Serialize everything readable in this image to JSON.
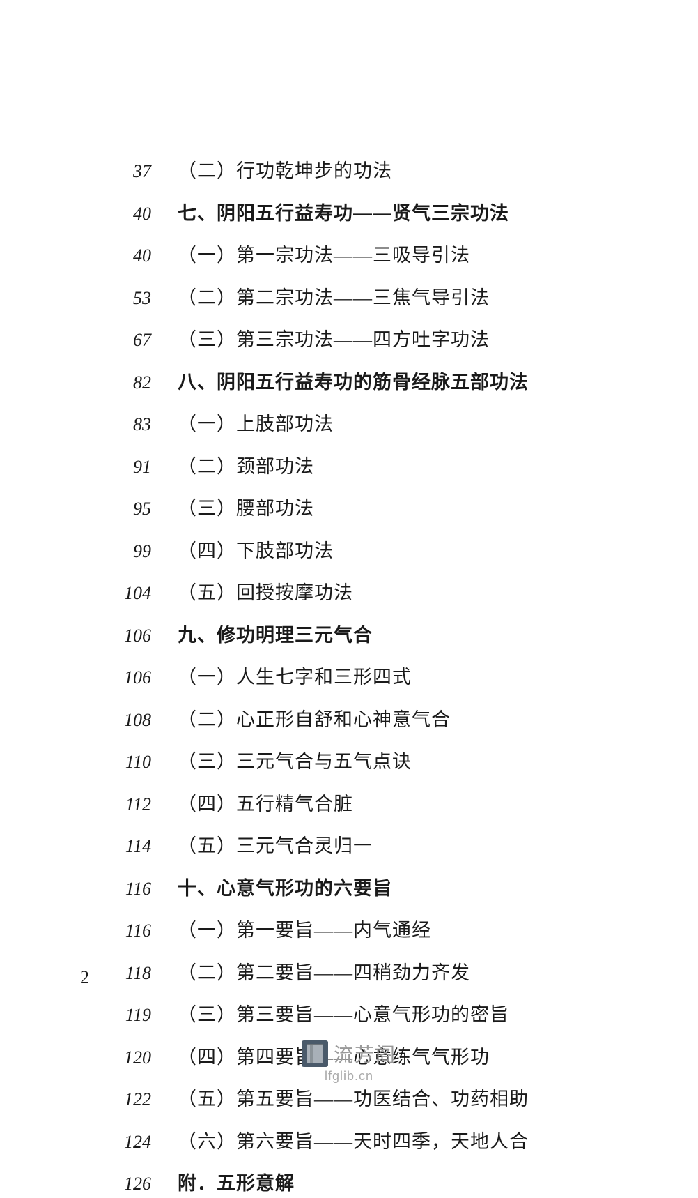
{
  "entries": [
    {
      "page": "37",
      "text": "（二）行功乾坤步的功法",
      "bold": false
    },
    {
      "page": "40",
      "text": "七、阴阳五行益寿功——贤气三宗功法",
      "bold": true
    },
    {
      "page": "40",
      "text": "（一）第一宗功法——三吸导引法",
      "bold": false
    },
    {
      "page": "53",
      "text": "（二）第二宗功法——三焦气导引法",
      "bold": false
    },
    {
      "page": "67",
      "text": "（三）第三宗功法——四方吐字功法",
      "bold": false
    },
    {
      "page": "82",
      "text": "八、阴阳五行益寿功的筋骨经脉五部功法",
      "bold": true
    },
    {
      "page": "83",
      "text": "（一）上肢部功法",
      "bold": false
    },
    {
      "page": "91",
      "text": "（二）颈部功法",
      "bold": false
    },
    {
      "page": "95",
      "text": "（三）腰部功法",
      "bold": false
    },
    {
      "page": "99",
      "text": "（四）下肢部功法",
      "bold": false
    },
    {
      "page": "104",
      "text": "（五）回授按摩功法",
      "bold": false
    },
    {
      "page": "106",
      "text": "九、修功明理三元气合",
      "bold": true
    },
    {
      "page": "106",
      "text": "（一）人生七字和三形四式",
      "bold": false
    },
    {
      "page": "108",
      "text": "（二）心正形自舒和心神意气合",
      "bold": false
    },
    {
      "page": "110",
      "text": "（三）三元气合与五气点诀",
      "bold": false
    },
    {
      "page": "112",
      "text": "（四）五行精气合脏",
      "bold": false
    },
    {
      "page": "114",
      "text": "（五）三元气合灵归一",
      "bold": false
    },
    {
      "page": "116",
      "text": "十、心意气形功的六要旨",
      "bold": true
    },
    {
      "page": "116",
      "text": "（一）第一要旨——内气通经",
      "bold": false
    },
    {
      "page": "118",
      "text": "（二）第二要旨——四稍劲力齐发",
      "bold": false
    },
    {
      "page": "119",
      "text": "（三）第三要旨——心意气形功的密旨",
      "bold": false
    },
    {
      "page": "120",
      "text": "（四）第四要旨——心意练气气形功",
      "bold": false
    },
    {
      "page": "122",
      "text": "（五）第五要旨——功医结合、功药相助",
      "bold": false
    },
    {
      "page": "124",
      "text": "（六）第六要旨——天时四季，天地人合",
      "bold": false
    },
    {
      "page": "126",
      "text": "附．五形意解",
      "bold": true
    }
  ],
  "footer_page": "2",
  "watermark": {
    "name": "流芳阁",
    "url": "lfglib.cn"
  }
}
